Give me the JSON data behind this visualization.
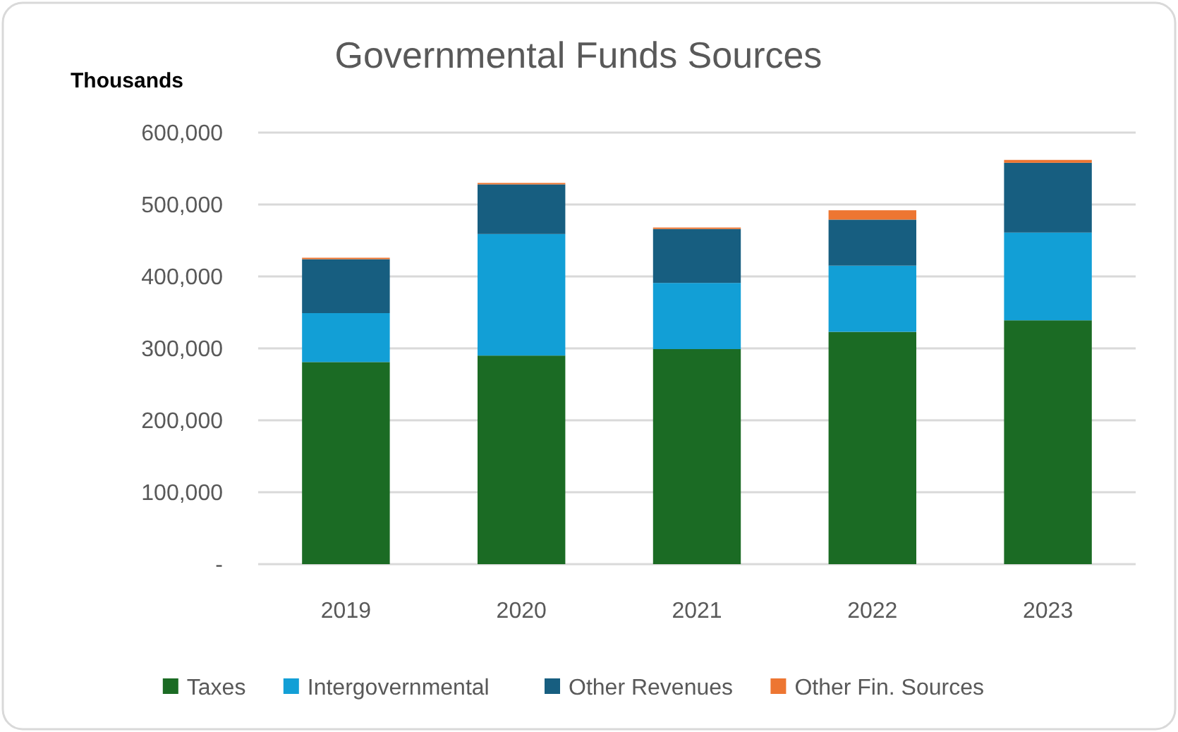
{
  "chart_data": {
    "type": "bar",
    "title": "Governmental Funds Sources",
    "ylabel": "Thousands",
    "categories": [
      "2019",
      "2020",
      "2021",
      "2022",
      "2023"
    ],
    "stacked": true,
    "series": [
      {
        "name": "Taxes",
        "color": "#1b6b24",
        "values": [
          281000,
          290000,
          299000,
          323000,
          339000
        ]
      },
      {
        "name": "Intergovernmental",
        "color": "#129fd6",
        "values": [
          68000,
          169000,
          92000,
          92000,
          122000
        ]
      },
      {
        "name": "Other Revenues",
        "color": "#175e80",
        "values": [
          75000,
          69000,
          75000,
          64000,
          97000
        ]
      },
      {
        "name": "Other Fin. Sources",
        "color": "#ed7632",
        "values": [
          2000,
          2000,
          2000,
          13000,
          4000
        ]
      }
    ],
    "ylim": [
      0,
      600000
    ],
    "yticks": [
      {
        "value": 0,
        "label": "-"
      },
      {
        "value": 100000,
        "label": "100,000"
      },
      {
        "value": 200000,
        "label": "200,000"
      },
      {
        "value": 300000,
        "label": "300,000"
      },
      {
        "value": 400000,
        "label": "400,000"
      },
      {
        "value": 500000,
        "label": "500,000"
      },
      {
        "value": 600000,
        "label": "600,000"
      }
    ],
    "grid": "y",
    "legend": "bottom"
  }
}
